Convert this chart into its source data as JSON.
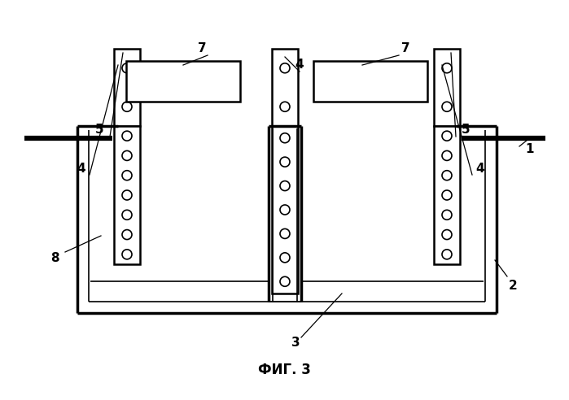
{
  "title": "ФИГ. 3",
  "bg_color": "#ffffff",
  "line_color": "#000000",
  "fig_width": 6.99,
  "fig_height": 4.92
}
